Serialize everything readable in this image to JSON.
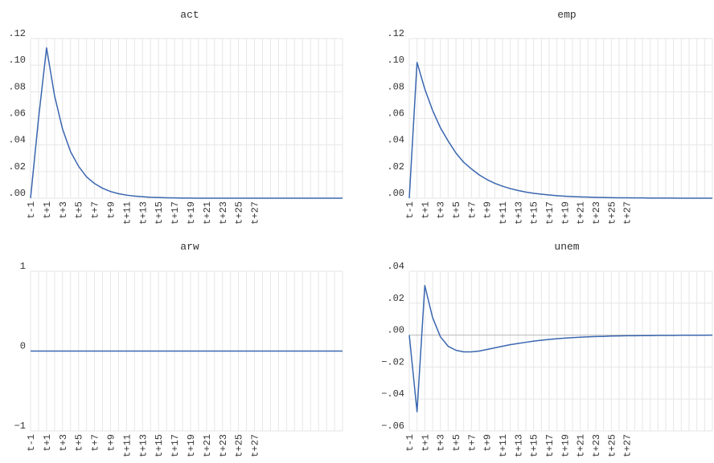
{
  "chart_data": [
    {
      "type": "line",
      "title": "act",
      "ylim": [
        0,
        0.12
      ],
      "yticks": [
        ".00",
        ".02",
        ".04",
        ".06",
        ".08",
        ".10",
        ".12"
      ],
      "x": [
        "t-1",
        "t",
        "t+1",
        "t+2",
        "t+3",
        "t+4",
        "t+5",
        "t+6",
        "t+7",
        "t+8",
        "t+9",
        "t+10",
        "t+11",
        "t+12",
        "t+13",
        "t+14",
        "t+15",
        "t+16",
        "t+17",
        "t+18",
        "t+19",
        "t+20",
        "t+21",
        "t+22",
        "t+23",
        "t+24",
        "t+25",
        "t+26",
        "t+27",
        "t+28",
        "t+29",
        "t+30",
        "t+31",
        "t+32",
        "t+33",
        "t+34",
        "t+35",
        "t+36",
        "t+37",
        "t+38"
      ],
      "xticks": [
        "t-1",
        "t+1",
        "t+3",
        "t+5",
        "t+7",
        "t+9",
        "t+11",
        "t+13",
        "t+15",
        "t+17",
        "t+19",
        "t+21",
        "t+23",
        "t+25",
        "t+27"
      ],
      "values": [
        0,
        0.06,
        0.113,
        0.077,
        0.052,
        0.035,
        0.024,
        0.016,
        0.011,
        0.0075,
        0.005,
        0.0034,
        0.0023,
        0.0016,
        0.0011,
        0.0007,
        0.0005,
        0.0003,
        0.0002,
        0.0001,
        0.0001,
        0,
        0,
        0,
        0,
        0,
        0,
        0,
        0,
        0,
        0,
        0,
        0,
        0,
        0,
        0,
        0,
        0,
        0,
        0
      ],
      "color": "#3a66b0"
    },
    {
      "type": "line",
      "title": "emp",
      "ylim": [
        0,
        0.12
      ],
      "yticks": [
        ".00",
        ".02",
        ".04",
        ".06",
        ".08",
        ".10",
        ".12"
      ],
      "x": [
        "t-1",
        "t",
        "t+1",
        "t+2",
        "t+3",
        "t+4",
        "t+5",
        "t+6",
        "t+7",
        "t+8",
        "t+9",
        "t+10",
        "t+11",
        "t+12",
        "t+13",
        "t+14",
        "t+15",
        "t+16",
        "t+17",
        "t+18",
        "t+19",
        "t+20",
        "t+21",
        "t+22",
        "t+23",
        "t+24",
        "t+25",
        "t+26",
        "t+27",
        "t+28",
        "t+29",
        "t+30",
        "t+31",
        "t+32",
        "t+33",
        "t+34",
        "t+35",
        "t+36",
        "t+37",
        "t+38"
      ],
      "xticks": [
        "t-1",
        "t+1",
        "t+3",
        "t+5",
        "t+7",
        "t+9",
        "t+11",
        "t+13",
        "t+15",
        "t+17",
        "t+19",
        "t+21",
        "t+23",
        "t+25",
        "t+27"
      ],
      "values": [
        0,
        0.102,
        0.082,
        0.066,
        0.053,
        0.043,
        0.034,
        0.027,
        0.022,
        0.0175,
        0.014,
        0.0112,
        0.009,
        0.0072,
        0.0058,
        0.0046,
        0.0037,
        0.003,
        0.0024,
        0.0019,
        0.0015,
        0.0012,
        0.001,
        0.0008,
        0.0006,
        0.0005,
        0.0004,
        0.0003,
        0.0003,
        0.0002,
        0.0002,
        0.0001,
        0.0001,
        0.0001,
        0.0001,
        0,
        0,
        0,
        0,
        0
      ],
      "color": "#3a66b0"
    },
    {
      "type": "line",
      "title": "arw",
      "ylim": [
        -1,
        1
      ],
      "yticks": [
        "−1",
        "0",
        "1"
      ],
      "x": [
        "t-1",
        "t",
        "t+1",
        "t+2",
        "t+3",
        "t+4",
        "t+5",
        "t+6",
        "t+7",
        "t+8",
        "t+9",
        "t+10",
        "t+11",
        "t+12",
        "t+13",
        "t+14",
        "t+15",
        "t+16",
        "t+17",
        "t+18",
        "t+19",
        "t+20",
        "t+21",
        "t+22",
        "t+23",
        "t+24",
        "t+25",
        "t+26",
        "t+27",
        "t+28",
        "t+29",
        "t+30",
        "t+31",
        "t+32",
        "t+33",
        "t+34",
        "t+35",
        "t+36",
        "t+37",
        "t+38"
      ],
      "xticks": [
        "t-1",
        "t+1",
        "t+3",
        "t+5",
        "t+7",
        "t+9",
        "t+11",
        "t+13",
        "t+15",
        "t+17",
        "t+19",
        "t+21",
        "t+23",
        "t+25",
        "t+27"
      ],
      "values": [
        0,
        0,
        0,
        0,
        0,
        0,
        0,
        0,
        0,
        0,
        0,
        0,
        0,
        0,
        0,
        0,
        0,
        0,
        0,
        0,
        0,
        0,
        0,
        0,
        0,
        0,
        0,
        0,
        0,
        0,
        0,
        0,
        0,
        0,
        0,
        0,
        0,
        0,
        0,
        0
      ],
      "color": "#3a66b0"
    },
    {
      "type": "line",
      "title": "unem",
      "ylim": [
        -0.06,
        0.04
      ],
      "yticks": [
        "−.06",
        "−.04",
        "−.02",
        ".00",
        ".02",
        ".04"
      ],
      "x": [
        "t-1",
        "t",
        "t+1",
        "t+2",
        "t+3",
        "t+4",
        "t+5",
        "t+6",
        "t+7",
        "t+8",
        "t+9",
        "t+10",
        "t+11",
        "t+12",
        "t+13",
        "t+14",
        "t+15",
        "t+16",
        "t+17",
        "t+18",
        "t+19",
        "t+20",
        "t+21",
        "t+22",
        "t+23",
        "t+24",
        "t+25",
        "t+26",
        "t+27",
        "t+28",
        "t+29",
        "t+30",
        "t+31",
        "t+32",
        "t+33",
        "t+34",
        "t+35",
        "t+36",
        "t+37",
        "t+38"
      ],
      "xticks": [
        "t-1",
        "t+1",
        "t+3",
        "t+5",
        "t+7",
        "t+9",
        "t+11",
        "t+13",
        "t+15",
        "t+17",
        "t+19",
        "t+21",
        "t+23",
        "t+25",
        "t+27"
      ],
      "values": [
        0,
        -0.048,
        0.031,
        0.011,
        -0.001,
        -0.007,
        -0.0095,
        -0.0105,
        -0.0105,
        -0.01,
        -0.009,
        -0.008,
        -0.007,
        -0.006,
        -0.0052,
        -0.0045,
        -0.0038,
        -0.0032,
        -0.0027,
        -0.0023,
        -0.0019,
        -0.0016,
        -0.0013,
        -0.0011,
        -0.0009,
        -0.0008,
        -0.0006,
        -0.0005,
        -0.0004,
        -0.0004,
        -0.0003,
        -0.0003,
        -0.0002,
        -0.0002,
        -0.0002,
        -0.0001,
        -0.0001,
        -0.0001,
        -0.0001,
        0
      ],
      "color": "#3a66b0"
    }
  ]
}
